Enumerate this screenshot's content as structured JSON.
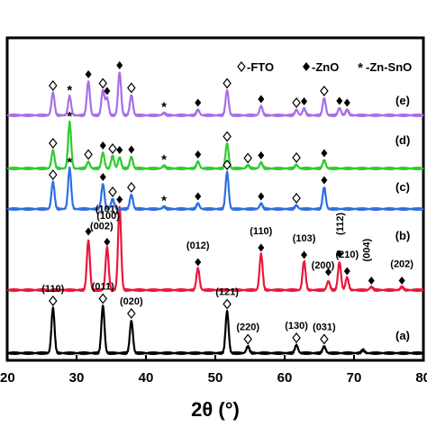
{
  "chart_data": {
    "type": "line",
    "xlabel": "2θ (°)",
    "xlim": [
      20,
      80
    ],
    "x_ticks": [
      "20",
      "30",
      "40",
      "50",
      "60",
      "70",
      "80"
    ],
    "legend": {
      "placement": "top-right",
      "entries": [
        {
          "symbol": "◇",
          "label": "-FTO"
        },
        {
          "symbol": "◆",
          "label": "-ZnO"
        },
        {
          "symbol": "*",
          "label": "-Zn-SnO"
        }
      ]
    },
    "series": [
      {
        "name": "(a)",
        "color": "#000000",
        "peaks": [
          [
            26.6,
            1.0
          ],
          [
            33.8,
            1.05
          ],
          [
            37.9,
            0.72
          ],
          [
            51.7,
            0.93
          ],
          [
            54.7,
            0.15
          ],
          [
            61.7,
            0.18
          ],
          [
            65.7,
            0.15
          ],
          [
            71.3,
            0.07
          ]
        ]
      },
      {
        "name": "(b)",
        "color": "#e8173c",
        "peaks": [
          [
            31.7,
            1.1
          ],
          [
            34.4,
            0.95
          ],
          [
            36.2,
            1.85
          ],
          [
            47.5,
            0.48
          ],
          [
            56.6,
            0.8
          ],
          [
            62.8,
            0.64
          ],
          [
            66.3,
            0.2
          ],
          [
            67.9,
            0.62
          ],
          [
            69.0,
            0.28
          ],
          [
            72.5,
            0.07
          ],
          [
            76.9,
            0.07
          ]
        ]
      },
      {
        "name": "(c)",
        "color": "#2f6fe0",
        "peaks": [
          [
            26.6,
            0.6
          ],
          [
            29.0,
            0.9
          ],
          [
            33.8,
            0.55
          ],
          [
            35.2,
            0.22
          ],
          [
            37.9,
            0.32
          ],
          [
            42.6,
            0.05
          ],
          [
            47.5,
            0.12
          ],
          [
            51.7,
            0.82
          ],
          [
            56.6,
            0.12
          ],
          [
            61.7,
            0.08
          ],
          [
            65.7,
            0.48
          ]
        ]
      },
      {
        "name": "(d)",
        "color": "#2ecc2e",
        "peaks": [
          [
            26.6,
            0.4
          ],
          [
            29.0,
            1.02
          ],
          [
            31.7,
            0.15
          ],
          [
            33.8,
            0.35
          ],
          [
            35.2,
            0.28
          ],
          [
            36.2,
            0.25
          ],
          [
            37.9,
            0.26
          ],
          [
            42.6,
            0.06
          ],
          [
            47.5,
            0.15
          ],
          [
            51.7,
            0.55
          ],
          [
            54.7,
            0.07
          ],
          [
            56.6,
            0.13
          ],
          [
            61.7,
            0.08
          ],
          [
            65.7,
            0.18
          ]
        ]
      },
      {
        "name": "(e)",
        "color": "#a86ee8",
        "peaks": [
          [
            26.6,
            0.5
          ],
          [
            29.0,
            0.42
          ],
          [
            31.7,
            0.75
          ],
          [
            33.8,
            0.55
          ],
          [
            34.4,
            0.38
          ],
          [
            36.2,
            0.95
          ],
          [
            37.9,
            0.45
          ],
          [
            42.6,
            0.05
          ],
          [
            47.5,
            0.12
          ],
          [
            51.7,
            0.55
          ],
          [
            56.6,
            0.2
          ],
          [
            61.7,
            0.12
          ],
          [
            62.8,
            0.15
          ],
          [
            65.7,
            0.38
          ],
          [
            67.9,
            0.16
          ],
          [
            69.0,
            0.12
          ]
        ]
      }
    ],
    "peak_labels": [
      {
        "curve": "(a)",
        "x": 26.6,
        "text": "(110)",
        "marker": "◇"
      },
      {
        "curve": "(a)",
        "x": 33.8,
        "text": "(011)",
        "marker": "◇"
      },
      {
        "curve": "(a)",
        "x": 37.9,
        "text": "(020)",
        "marker": "◇"
      },
      {
        "curve": "(a)",
        "x": 51.7,
        "text": "(121)",
        "marker": "◇"
      },
      {
        "curve": "(a)",
        "x": 54.7,
        "text": "(220)",
        "marker": "◇"
      },
      {
        "curve": "(a)",
        "x": 61.7,
        "text": "(130)",
        "marker": "◇"
      },
      {
        "curve": "(a)",
        "x": 65.7,
        "text": "(031)",
        "marker": "◇"
      },
      {
        "curve": "(b)",
        "x": 31.7,
        "text": "(100)",
        "marker": "◆"
      },
      {
        "curve": "(b)",
        "x": 34.4,
        "text": "(002)",
        "marker": "◆"
      },
      {
        "curve": "(b)",
        "x": 36.2,
        "text": "(101)",
        "marker": "◆"
      },
      {
        "curve": "(b)",
        "x": 47.5,
        "text": "(012)",
        "marker": "◆"
      },
      {
        "curve": "(b)",
        "x": 56.6,
        "text": "(110)",
        "marker": "◆"
      },
      {
        "curve": "(b)",
        "x": 62.8,
        "text": "(103)",
        "marker": "◆"
      },
      {
        "curve": "(b)",
        "x": 66.3,
        "text": "(200)",
        "marker": "◆"
      },
      {
        "curve": "(b)",
        "x": 67.9,
        "text": "(112)",
        "marker": "◆"
      },
      {
        "curve": "(b)",
        "x": 69.0,
        "text": "(210)",
        "marker": "◆"
      },
      {
        "curve": "(b)",
        "x": 72.5,
        "text": "(004)",
        "marker": "◆"
      },
      {
        "curve": "(b)",
        "x": 76.9,
        "text": "(202)",
        "marker": "◆"
      }
    ],
    "peak_markers": [
      {
        "curve": "(c)",
        "x": 26.6,
        "marker": "◇"
      },
      {
        "curve": "(c)",
        "x": 29.0,
        "marker": "*"
      },
      {
        "curve": "(c)",
        "x": 33.8,
        "marker": "◆"
      },
      {
        "curve": "(c)",
        "x": 35.2,
        "marker": "◇"
      },
      {
        "curve": "(c)",
        "x": 37.9,
        "marker": "◇"
      },
      {
        "curve": "(c)",
        "x": 42.6,
        "marker": "*"
      },
      {
        "curve": "(c)",
        "x": 47.5,
        "marker": "◆"
      },
      {
        "curve": "(c)",
        "x": 51.7,
        "marker": "◇"
      },
      {
        "curve": "(c)",
        "x": 56.6,
        "marker": "◆"
      },
      {
        "curve": "(c)",
        "x": 61.7,
        "marker": "◇"
      },
      {
        "curve": "(c)",
        "x": 65.7,
        "marker": "◆"
      },
      {
        "curve": "(d)",
        "x": 26.6,
        "marker": "◇"
      },
      {
        "curve": "(d)",
        "x": 29.0,
        "marker": "*"
      },
      {
        "curve": "(d)",
        "x": 31.7,
        "marker": "◇"
      },
      {
        "curve": "(d)",
        "x": 33.8,
        "marker": "◆"
      },
      {
        "curve": "(d)",
        "x": 35.2,
        "marker": "◇"
      },
      {
        "curve": "(d)",
        "x": 36.2,
        "marker": "◆"
      },
      {
        "curve": "(d)",
        "x": 37.9,
        "marker": "◆"
      },
      {
        "curve": "(d)",
        "x": 42.6,
        "marker": "*"
      },
      {
        "curve": "(d)",
        "x": 47.5,
        "marker": "◆"
      },
      {
        "curve": "(d)",
        "x": 51.7,
        "marker": "◇"
      },
      {
        "curve": "(d)",
        "x": 54.7,
        "marker": "◇"
      },
      {
        "curve": "(d)",
        "x": 56.6,
        "marker": "◆"
      },
      {
        "curve": "(d)",
        "x": 61.7,
        "marker": "◇"
      },
      {
        "curve": "(d)",
        "x": 65.7,
        "marker": "◆"
      },
      {
        "curve": "(e)",
        "x": 26.6,
        "marker": "◇"
      },
      {
        "curve": "(e)",
        "x": 29.0,
        "marker": "*"
      },
      {
        "curve": "(e)",
        "x": 31.7,
        "marker": "◆"
      },
      {
        "curve": "(e)",
        "x": 33.8,
        "marker": "◇"
      },
      {
        "curve": "(e)",
        "x": 34.4,
        "marker": "◆"
      },
      {
        "curve": "(e)",
        "x": 36.2,
        "marker": "◆"
      },
      {
        "curve": "(e)",
        "x": 37.9,
        "marker": "◇"
      },
      {
        "curve": "(e)",
        "x": 42.6,
        "marker": "*"
      },
      {
        "curve": "(e)",
        "x": 47.5,
        "marker": "◆"
      },
      {
        "curve": "(e)",
        "x": 51.7,
        "marker": "◇"
      },
      {
        "curve": "(e)",
        "x": 56.6,
        "marker": "◆"
      },
      {
        "curve": "(e)",
        "x": 61.7,
        "marker": "◇"
      },
      {
        "curve": "(e)",
        "x": 62.8,
        "marker": "◆"
      },
      {
        "curve": "(e)",
        "x": 65.7,
        "marker": "◇"
      },
      {
        "curve": "(e)",
        "x": 67.9,
        "marker": "◆"
      },
      {
        "curve": "(e)",
        "x": 69.0,
        "marker": "◆"
      }
    ]
  }
}
